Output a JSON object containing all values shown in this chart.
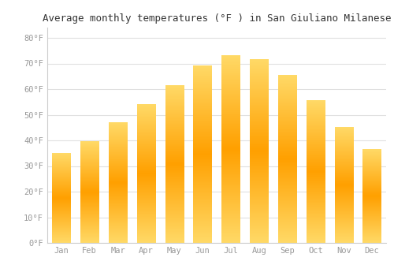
{
  "months": [
    "Jan",
    "Feb",
    "Mar",
    "Apr",
    "May",
    "Jun",
    "Jul",
    "Aug",
    "Sep",
    "Oct",
    "Nov",
    "Dec"
  ],
  "values": [
    35,
    39.5,
    47,
    54,
    61.5,
    69,
    73,
    71.5,
    65.5,
    55.5,
    45,
    36.5
  ],
  "bar_color_bottom": "#FFD966",
  "bar_color_mid": "#FFA500",
  "bar_color_top": "#FFD966",
  "background_color": "#FFFFFF",
  "title": "Average monthly temperatures (°F ) in San Giuliano Milanese",
  "title_fontsize": 9,
  "ylabel_ticks": [
    "0°F",
    "10°F",
    "20°F",
    "30°F",
    "40°F",
    "50°F",
    "60°F",
    "70°F",
    "80°F"
  ],
  "ytick_values": [
    0,
    10,
    20,
    30,
    40,
    50,
    60,
    70,
    80
  ],
  "ylim": [
    0,
    84
  ],
  "grid_color": "#E0E0E0",
  "tick_label_color": "#999999",
  "font_family": "monospace",
  "bar_width": 0.65
}
